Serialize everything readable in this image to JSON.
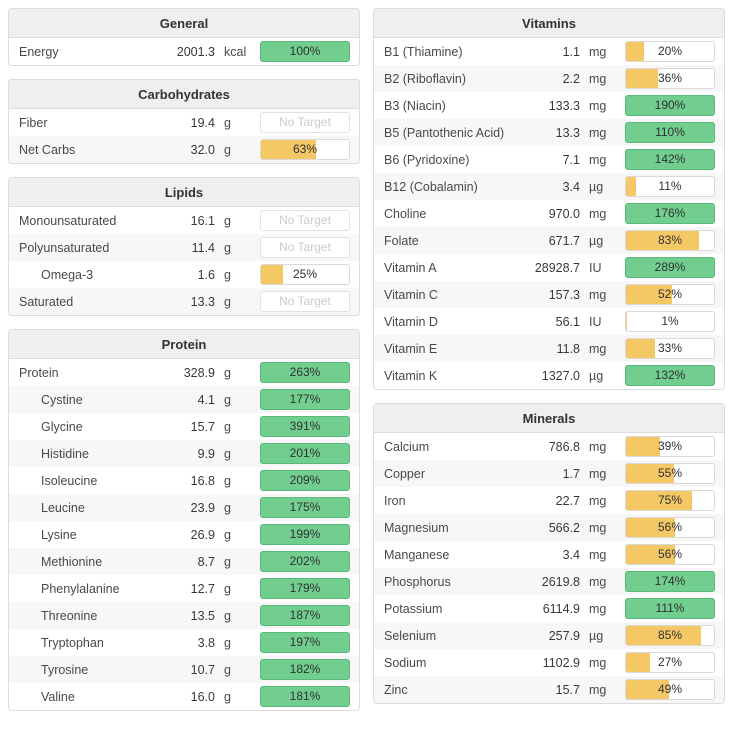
{
  "colors": {
    "green_fill": "#72ce8e",
    "green_border": "#5ab97c",
    "orange_fill": "#f5c866",
    "pill_border": "#d9d9d9",
    "no_target_text": "#c6cbd0",
    "header_bg": "#efefef",
    "row_alt_bg": "#f7f7f7",
    "panel_border": "#dcdcdc"
  },
  "no_target_label": "No Target",
  "columns": [
    {
      "panels": [
        {
          "title": "General",
          "rows": [
            {
              "name": "Energy",
              "indent": false,
              "amount": "2001.3",
              "unit": "kcal",
              "target": {
                "type": "percent",
                "percent": 100,
                "label": "100%"
              }
            }
          ]
        },
        {
          "title": "Carbohydrates",
          "rows": [
            {
              "name": "Fiber",
              "indent": false,
              "amount": "19.4",
              "unit": "g",
              "target": {
                "type": "none",
                "label": "No Target"
              }
            },
            {
              "name": "Net Carbs",
              "indent": false,
              "amount": "32.0",
              "unit": "g",
              "target": {
                "type": "percent",
                "percent": 63,
                "label": "63%"
              }
            }
          ]
        },
        {
          "title": "Lipids",
          "rows": [
            {
              "name": "Monounsaturated",
              "indent": false,
              "amount": "16.1",
              "unit": "g",
              "target": {
                "type": "none",
                "label": "No Target"
              }
            },
            {
              "name": "Polyunsaturated",
              "indent": false,
              "amount": "11.4",
              "unit": "g",
              "target": {
                "type": "none",
                "label": "No Target"
              }
            },
            {
              "name": "Omega-3",
              "indent": true,
              "amount": "1.6",
              "unit": "g",
              "target": {
                "type": "percent",
                "percent": 25,
                "label": "25%"
              }
            },
            {
              "name": "Saturated",
              "indent": false,
              "amount": "13.3",
              "unit": "g",
              "target": {
                "type": "none",
                "label": "No Target"
              }
            }
          ]
        },
        {
          "title": "Protein",
          "rows": [
            {
              "name": "Protein",
              "indent": false,
              "amount": "328.9",
              "unit": "g",
              "target": {
                "type": "percent",
                "percent": 263,
                "label": "263%"
              }
            },
            {
              "name": "Cystine",
              "indent": true,
              "amount": "4.1",
              "unit": "g",
              "target": {
                "type": "percent",
                "percent": 177,
                "label": "177%"
              }
            },
            {
              "name": "Glycine",
              "indent": true,
              "amount": "15.7",
              "unit": "g",
              "target": {
                "type": "percent",
                "percent": 391,
                "label": "391%"
              }
            },
            {
              "name": "Histidine",
              "indent": true,
              "amount": "9.9",
              "unit": "g",
              "target": {
                "type": "percent",
                "percent": 201,
                "label": "201%"
              }
            },
            {
              "name": "Isoleucine",
              "indent": true,
              "amount": "16.8",
              "unit": "g",
              "target": {
                "type": "percent",
                "percent": 209,
                "label": "209%"
              }
            },
            {
              "name": "Leucine",
              "indent": true,
              "amount": "23.9",
              "unit": "g",
              "target": {
                "type": "percent",
                "percent": 175,
                "label": "175%"
              }
            },
            {
              "name": "Lysine",
              "indent": true,
              "amount": "26.9",
              "unit": "g",
              "target": {
                "type": "percent",
                "percent": 199,
                "label": "199%"
              }
            },
            {
              "name": "Methionine",
              "indent": true,
              "amount": "8.7",
              "unit": "g",
              "target": {
                "type": "percent",
                "percent": 202,
                "label": "202%"
              }
            },
            {
              "name": "Phenylalanine",
              "indent": true,
              "amount": "12.7",
              "unit": "g",
              "target": {
                "type": "percent",
                "percent": 179,
                "label": "179%"
              }
            },
            {
              "name": "Threonine",
              "indent": true,
              "amount": "13.5",
              "unit": "g",
              "target": {
                "type": "percent",
                "percent": 187,
                "label": "187%"
              }
            },
            {
              "name": "Tryptophan",
              "indent": true,
              "amount": "3.8",
              "unit": "g",
              "target": {
                "type": "percent",
                "percent": 197,
                "label": "197%"
              }
            },
            {
              "name": "Tyrosine",
              "indent": true,
              "amount": "10.7",
              "unit": "g",
              "target": {
                "type": "percent",
                "percent": 182,
                "label": "182%"
              }
            },
            {
              "name": "Valine",
              "indent": true,
              "amount": "16.0",
              "unit": "g",
              "target": {
                "type": "percent",
                "percent": 181,
                "label": "181%"
              }
            }
          ]
        }
      ]
    },
    {
      "panels": [
        {
          "title": "Vitamins",
          "rows": [
            {
              "name": "B1 (Thiamine)",
              "indent": false,
              "amount": "1.1",
              "unit": "mg",
              "target": {
                "type": "percent",
                "percent": 20,
                "label": "20%"
              }
            },
            {
              "name": "B2 (Riboflavin)",
              "indent": false,
              "amount": "2.2",
              "unit": "mg",
              "target": {
                "type": "percent",
                "percent": 36,
                "label": "36%"
              }
            },
            {
              "name": "B3 (Niacin)",
              "indent": false,
              "amount": "133.3",
              "unit": "mg",
              "target": {
                "type": "percent",
                "percent": 190,
                "label": "190%"
              }
            },
            {
              "name": "B5 (Pantothenic Acid)",
              "indent": false,
              "amount": "13.3",
              "unit": "mg",
              "target": {
                "type": "percent",
                "percent": 110,
                "label": "110%"
              }
            },
            {
              "name": "B6 (Pyridoxine)",
              "indent": false,
              "amount": "7.1",
              "unit": "mg",
              "target": {
                "type": "percent",
                "percent": 142,
                "label": "142%"
              }
            },
            {
              "name": "B12 (Cobalamin)",
              "indent": false,
              "amount": "3.4",
              "unit": "µg",
              "target": {
                "type": "percent",
                "percent": 11,
                "label": "11%"
              }
            },
            {
              "name": "Choline",
              "indent": false,
              "amount": "970.0",
              "unit": "mg",
              "target": {
                "type": "percent",
                "percent": 176,
                "label": "176%"
              }
            },
            {
              "name": "Folate",
              "indent": false,
              "amount": "671.7",
              "unit": "µg",
              "target": {
                "type": "percent",
                "percent": 83,
                "label": "83%"
              }
            },
            {
              "name": "Vitamin A",
              "indent": false,
              "amount": "28928.7",
              "unit": "IU",
              "target": {
                "type": "percent",
                "percent": 289,
                "label": "289%"
              }
            },
            {
              "name": "Vitamin C",
              "indent": false,
              "amount": "157.3",
              "unit": "mg",
              "target": {
                "type": "percent",
                "percent": 52,
                "label": "52%"
              }
            },
            {
              "name": "Vitamin D",
              "indent": false,
              "amount": "56.1",
              "unit": "IU",
              "target": {
                "type": "percent",
                "percent": 1,
                "label": "1%"
              }
            },
            {
              "name": "Vitamin E",
              "indent": false,
              "amount": "11.8",
              "unit": "mg",
              "target": {
                "type": "percent",
                "percent": 33,
                "label": "33%"
              }
            },
            {
              "name": "Vitamin K",
              "indent": false,
              "amount": "1327.0",
              "unit": "µg",
              "target": {
                "type": "percent",
                "percent": 132,
                "label": "132%"
              }
            }
          ]
        },
        {
          "title": "Minerals",
          "rows": [
            {
              "name": "Calcium",
              "indent": false,
              "amount": "786.8",
              "unit": "mg",
              "target": {
                "type": "percent",
                "percent": 39,
                "label": "39%"
              }
            },
            {
              "name": "Copper",
              "indent": false,
              "amount": "1.7",
              "unit": "mg",
              "target": {
                "type": "percent",
                "percent": 55,
                "label": "55%"
              }
            },
            {
              "name": "Iron",
              "indent": false,
              "amount": "22.7",
              "unit": "mg",
              "target": {
                "type": "percent",
                "percent": 75,
                "label": "75%"
              }
            },
            {
              "name": "Magnesium",
              "indent": false,
              "amount": "566.2",
              "unit": "mg",
              "target": {
                "type": "percent",
                "percent": 56,
                "label": "56%"
              }
            },
            {
              "name": "Manganese",
              "indent": false,
              "amount": "3.4",
              "unit": "mg",
              "target": {
                "type": "percent",
                "percent": 56,
                "label": "56%"
              }
            },
            {
              "name": "Phosphorus",
              "indent": false,
              "amount": "2619.8",
              "unit": "mg",
              "target": {
                "type": "percent",
                "percent": 174,
                "label": "174%"
              }
            },
            {
              "name": "Potassium",
              "indent": false,
              "amount": "6114.9",
              "unit": "mg",
              "target": {
                "type": "percent",
                "percent": 111,
                "label": "111%"
              }
            },
            {
              "name": "Selenium",
              "indent": false,
              "amount": "257.9",
              "unit": "µg",
              "target": {
                "type": "percent",
                "percent": 85,
                "label": "85%"
              }
            },
            {
              "name": "Sodium",
              "indent": false,
              "amount": "1102.9",
              "unit": "mg",
              "target": {
                "type": "percent",
                "percent": 27,
                "label": "27%"
              }
            },
            {
              "name": "Zinc",
              "indent": false,
              "amount": "15.7",
              "unit": "mg",
              "target": {
                "type": "percent",
                "percent": 49,
                "label": "49%"
              }
            }
          ]
        }
      ]
    }
  ]
}
